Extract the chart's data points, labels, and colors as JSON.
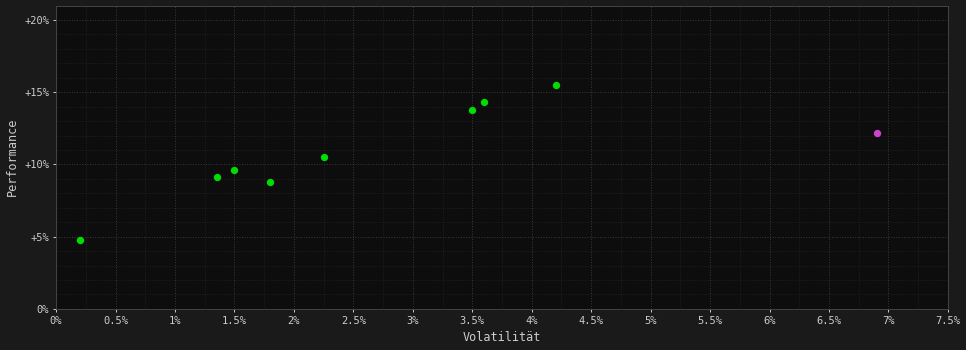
{
  "background_color": "#1a1a1a",
  "plot_bg_color": "#0d0d0d",
  "grid_color": "#444444",
  "grid_linestyle": ":",
  "xlabel": "Volatilität",
  "ylabel": "Performance",
  "xlabel_color": "#cccccc",
  "ylabel_color": "#cccccc",
  "tick_color": "#cccccc",
  "xlim": [
    0.0,
    0.075
  ],
  "ylim": [
    0.0,
    0.21
  ],
  "xticks": [
    0.0,
    0.005,
    0.01,
    0.015,
    0.02,
    0.025,
    0.03,
    0.035,
    0.04,
    0.045,
    0.05,
    0.055,
    0.06,
    0.065,
    0.07,
    0.075
  ],
  "yticks": [
    0.0,
    0.05,
    0.1,
    0.15,
    0.2
  ],
  "xtick_labels": [
    "0%",
    "0.5%",
    "1%",
    "1.5%",
    "2%",
    "2.5%",
    "3%",
    "3.5%",
    "4%",
    "4.5%",
    "5%",
    "5.5%",
    "6%",
    "6.5%",
    "7%",
    "7.5%"
  ],
  "ytick_labels": [
    "0%",
    "+5%",
    "+10%",
    "+15%",
    "+20%"
  ],
  "green_points": [
    [
      0.002,
      0.048
    ],
    [
      0.0135,
      0.091
    ],
    [
      0.015,
      0.096
    ],
    [
      0.018,
      0.088
    ],
    [
      0.0225,
      0.105
    ],
    [
      0.035,
      0.138
    ],
    [
      0.036,
      0.143
    ],
    [
      0.042,
      0.155
    ]
  ],
  "magenta_points": [
    [
      0.069,
      0.122
    ]
  ],
  "green_color": "#00dd00",
  "magenta_color": "#cc44cc",
  "marker_size": 28,
  "spine_color": "#444444",
  "font_family": "monospace"
}
